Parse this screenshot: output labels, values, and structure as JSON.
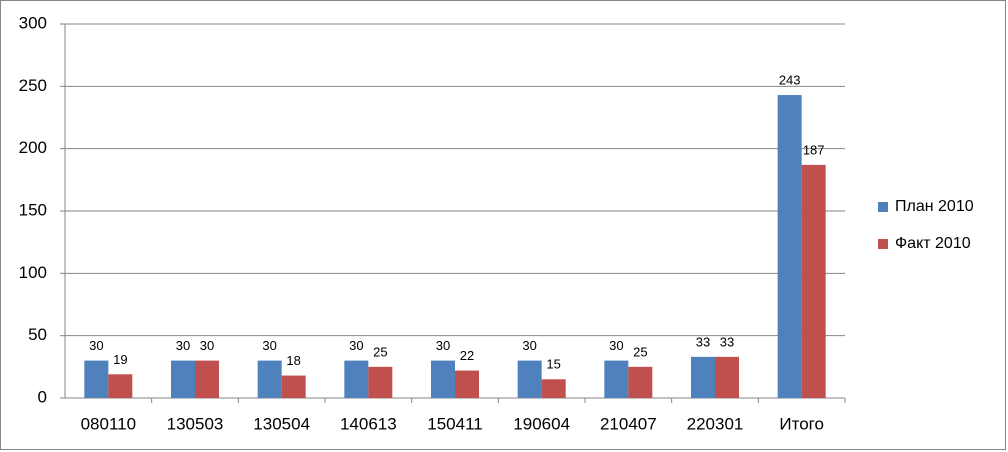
{
  "chart_data": {
    "type": "bar",
    "categories": [
      "080110",
      "130503",
      "130504",
      "140613",
      "150411",
      "190604",
      "210407",
      "220301",
      "Итого"
    ],
    "series": [
      {
        "name": "План 2010",
        "color": "#4f81bd",
        "values": [
          30,
          30,
          30,
          30,
          30,
          30,
          30,
          33,
          243
        ]
      },
      {
        "name": "Факт 2010",
        "color": "#c0504d",
        "values": [
          19,
          30,
          18,
          25,
          22,
          15,
          25,
          33,
          187
        ]
      }
    ],
    "ylim": [
      0,
      300
    ],
    "yticks": [
      0,
      50,
      100,
      150,
      200,
      250,
      300
    ],
    "grid": true,
    "legend": "right"
  }
}
